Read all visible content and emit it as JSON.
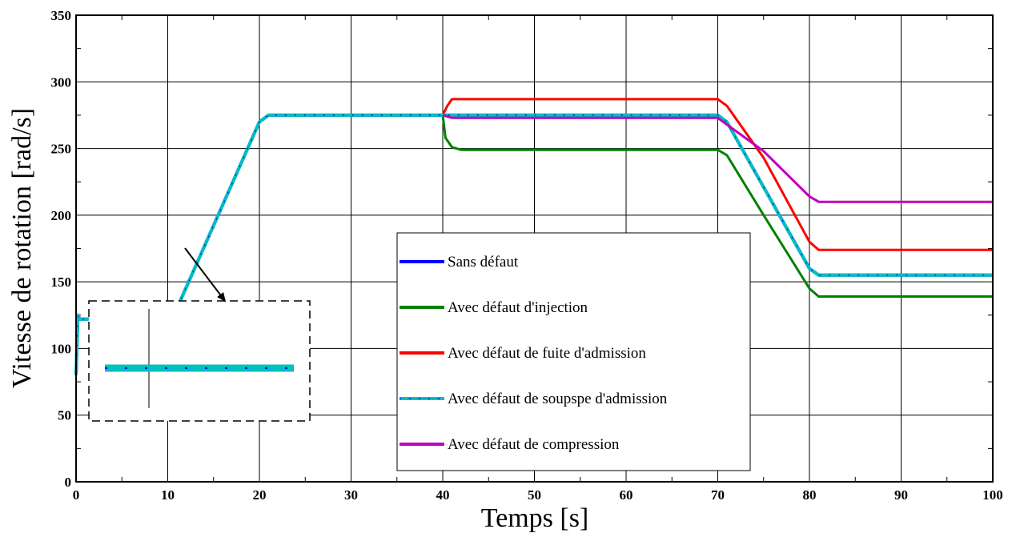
{
  "chart_data": {
    "type": "line",
    "xlabel": "Temps [s]",
    "ylabel": "Vitesse de rotation [rad/s]",
    "xlim": [
      0,
      100
    ],
    "ylim": [
      0,
      350
    ],
    "xticks": [
      0,
      10,
      20,
      30,
      40,
      50,
      60,
      70,
      80,
      90,
      100
    ],
    "yticks": [
      0,
      50,
      100,
      150,
      200,
      250,
      300,
      350
    ],
    "grid": true,
    "legend_position": "center-right",
    "series": [
      {
        "name": "Sans défaut",
        "color": "#0000ff",
        "dashed": false,
        "x": [
          0,
          0.2,
          0.4,
          1.2,
          11,
          20,
          21,
          40,
          70,
          71,
          80,
          81,
          100
        ],
        "y": [
          80,
          125,
          122,
          122,
          130,
          270,
          275,
          275,
          275,
          270,
          160,
          155,
          155
        ]
      },
      {
        "name": "Avec défaut d'injection",
        "color": "#008000",
        "dashed": false,
        "x": [
          40,
          40.3,
          41,
          42,
          70,
          71,
          75,
          80,
          81,
          100
        ],
        "y": [
          275,
          258,
          251,
          249,
          249,
          245,
          200,
          145,
          139,
          139
        ]
      },
      {
        "name": "Avec défaut de fuite d'admission",
        "color": "#ff0000",
        "dashed": false,
        "x": [
          40,
          40.5,
          41,
          70,
          71,
          75,
          80,
          81,
          100
        ],
        "y": [
          275,
          282,
          287,
          287,
          282,
          243,
          180,
          174,
          174
        ]
      },
      {
        "name": "Avec défaut de soupspe d'admission",
        "color": "#00bfbf",
        "dashed": true,
        "x": [
          0,
          0.2,
          0.4,
          1.2,
          11,
          20,
          21,
          40,
          70,
          71,
          80,
          81,
          100
        ],
        "y": [
          80,
          125,
          122,
          122,
          130,
          270,
          275,
          275,
          275,
          270,
          160,
          155,
          155
        ]
      },
      {
        "name": "Avec défaut de compression",
        "color": "#bf00bf",
        "dashed": false,
        "x": [
          40,
          40.5,
          41,
          70,
          71,
          75,
          80,
          81,
          100
        ],
        "y": [
          275,
          274,
          273,
          273,
          268,
          248,
          214,
          210,
          210
        ]
      }
    ]
  }
}
